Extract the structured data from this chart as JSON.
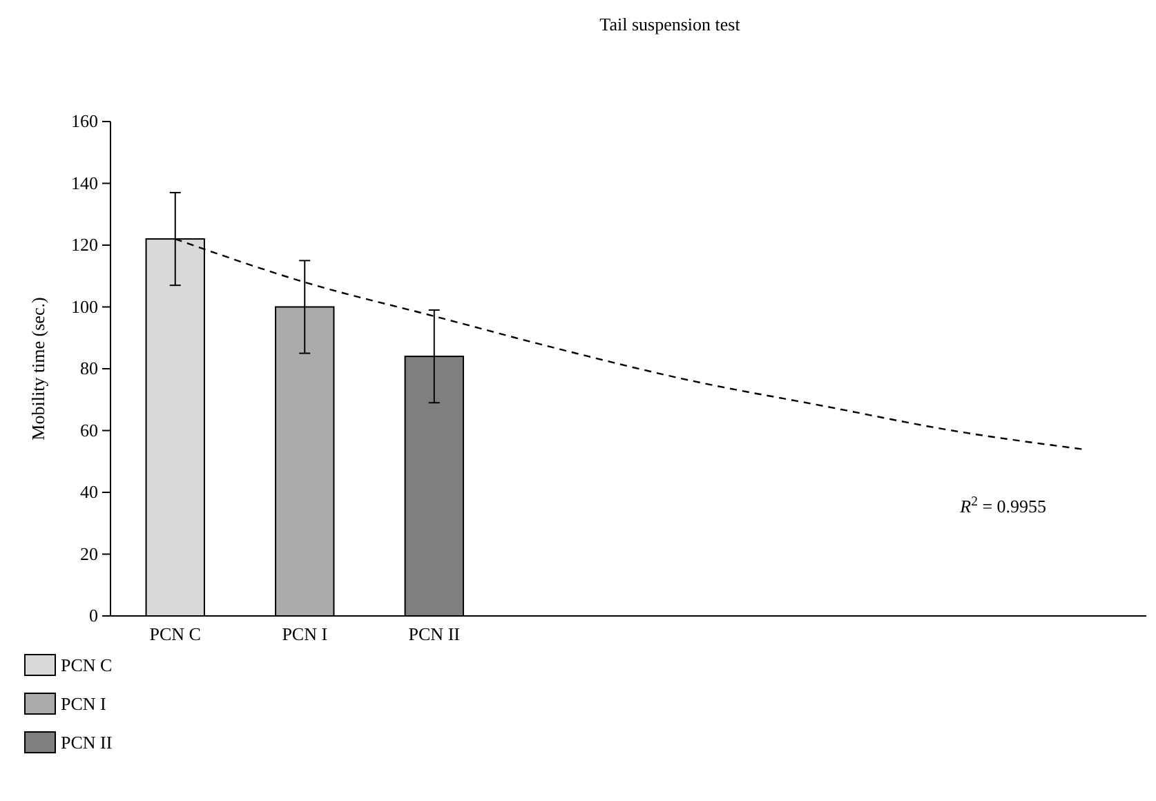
{
  "chart_data": {
    "type": "bar",
    "title": "Tail suspension test",
    "ylabel": "Mobility time (sec.)",
    "categories": [
      "PCN C",
      "PCN I",
      "PCN II",
      null,
      null,
      null,
      null,
      null
    ],
    "stacked": true,
    "series": [
      {
        "name": "PCN C",
        "color": "#d9d9d9",
        "values": [
          122,
          null,
          null,
          null,
          null,
          null,
          null,
          null
        ],
        "errors": [
          15,
          null,
          null,
          null,
          null,
          null,
          null,
          null
        ]
      },
      {
        "name": "PCN I",
        "color": "#ababab",
        "values": [
          null,
          100,
          null,
          null,
          null,
          null,
          null,
          null
        ],
        "errors": [
          null,
          15,
          null,
          null,
          null,
          null,
          null,
          null
        ]
      },
      {
        "name": "PCN II",
        "color": "#7f7f7f",
        "values": [
          null,
          null,
          84,
          null,
          null,
          null,
          null,
          null
        ],
        "errors": [
          null,
          null,
          15,
          null,
          null,
          null,
          null,
          null
        ]
      },
      {
        "type": "line",
        "color": "#000000",
        "line_style": "dashed",
        "marker": "none",
        "values": [
          122,
          108,
          97,
          86,
          76,
          68,
          60,
          54
        ]
      }
    ],
    "ylim": [
      0,
      160
    ],
    "yticks": [
      0,
      20,
      40,
      60,
      80,
      100,
      120,
      140,
      160
    ],
    "legend": "bottom left",
    "annotations": [
      "R$^{2}$ = 0.9955"
    ]
  }
}
